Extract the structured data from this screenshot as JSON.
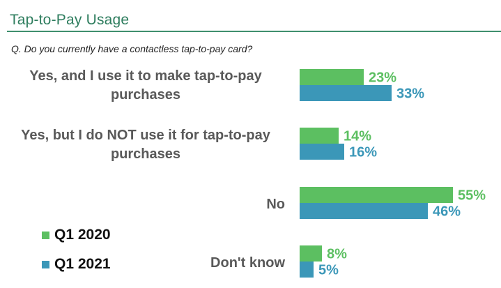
{
  "header": {
    "title": "Tap-to-Pay Usage",
    "question": "Q. Do you currently have a contactless tap-to-pay card?"
  },
  "legend": [
    {
      "label": "Q1 2020",
      "color": "#5cbf61"
    },
    {
      "label": "Q1 2021",
      "color": "#3b97b8"
    }
  ],
  "chart_data": {
    "type": "bar",
    "orientation": "horizontal",
    "categories": [
      "Yes, and I use it to make tap-to-pay purchases",
      "Yes, but I do NOT use it for tap-to-pay purchases",
      "No",
      "Don't know"
    ],
    "series": [
      {
        "name": "Q1 2020",
        "values": [
          23,
          14,
          55,
          8
        ],
        "labels": [
          "23%",
          "14%",
          "55%",
          "8%"
        ],
        "color": "#5cbf61"
      },
      {
        "name": "Q1 2021",
        "values": [
          33,
          16,
          46,
          5
        ],
        "labels": [
          "33%",
          "16%",
          "46%",
          "5%"
        ],
        "color": "#3b97b8"
      }
    ],
    "xlim": [
      0,
      100
    ],
    "grid": false,
    "legend_position": "bottom-left"
  }
}
